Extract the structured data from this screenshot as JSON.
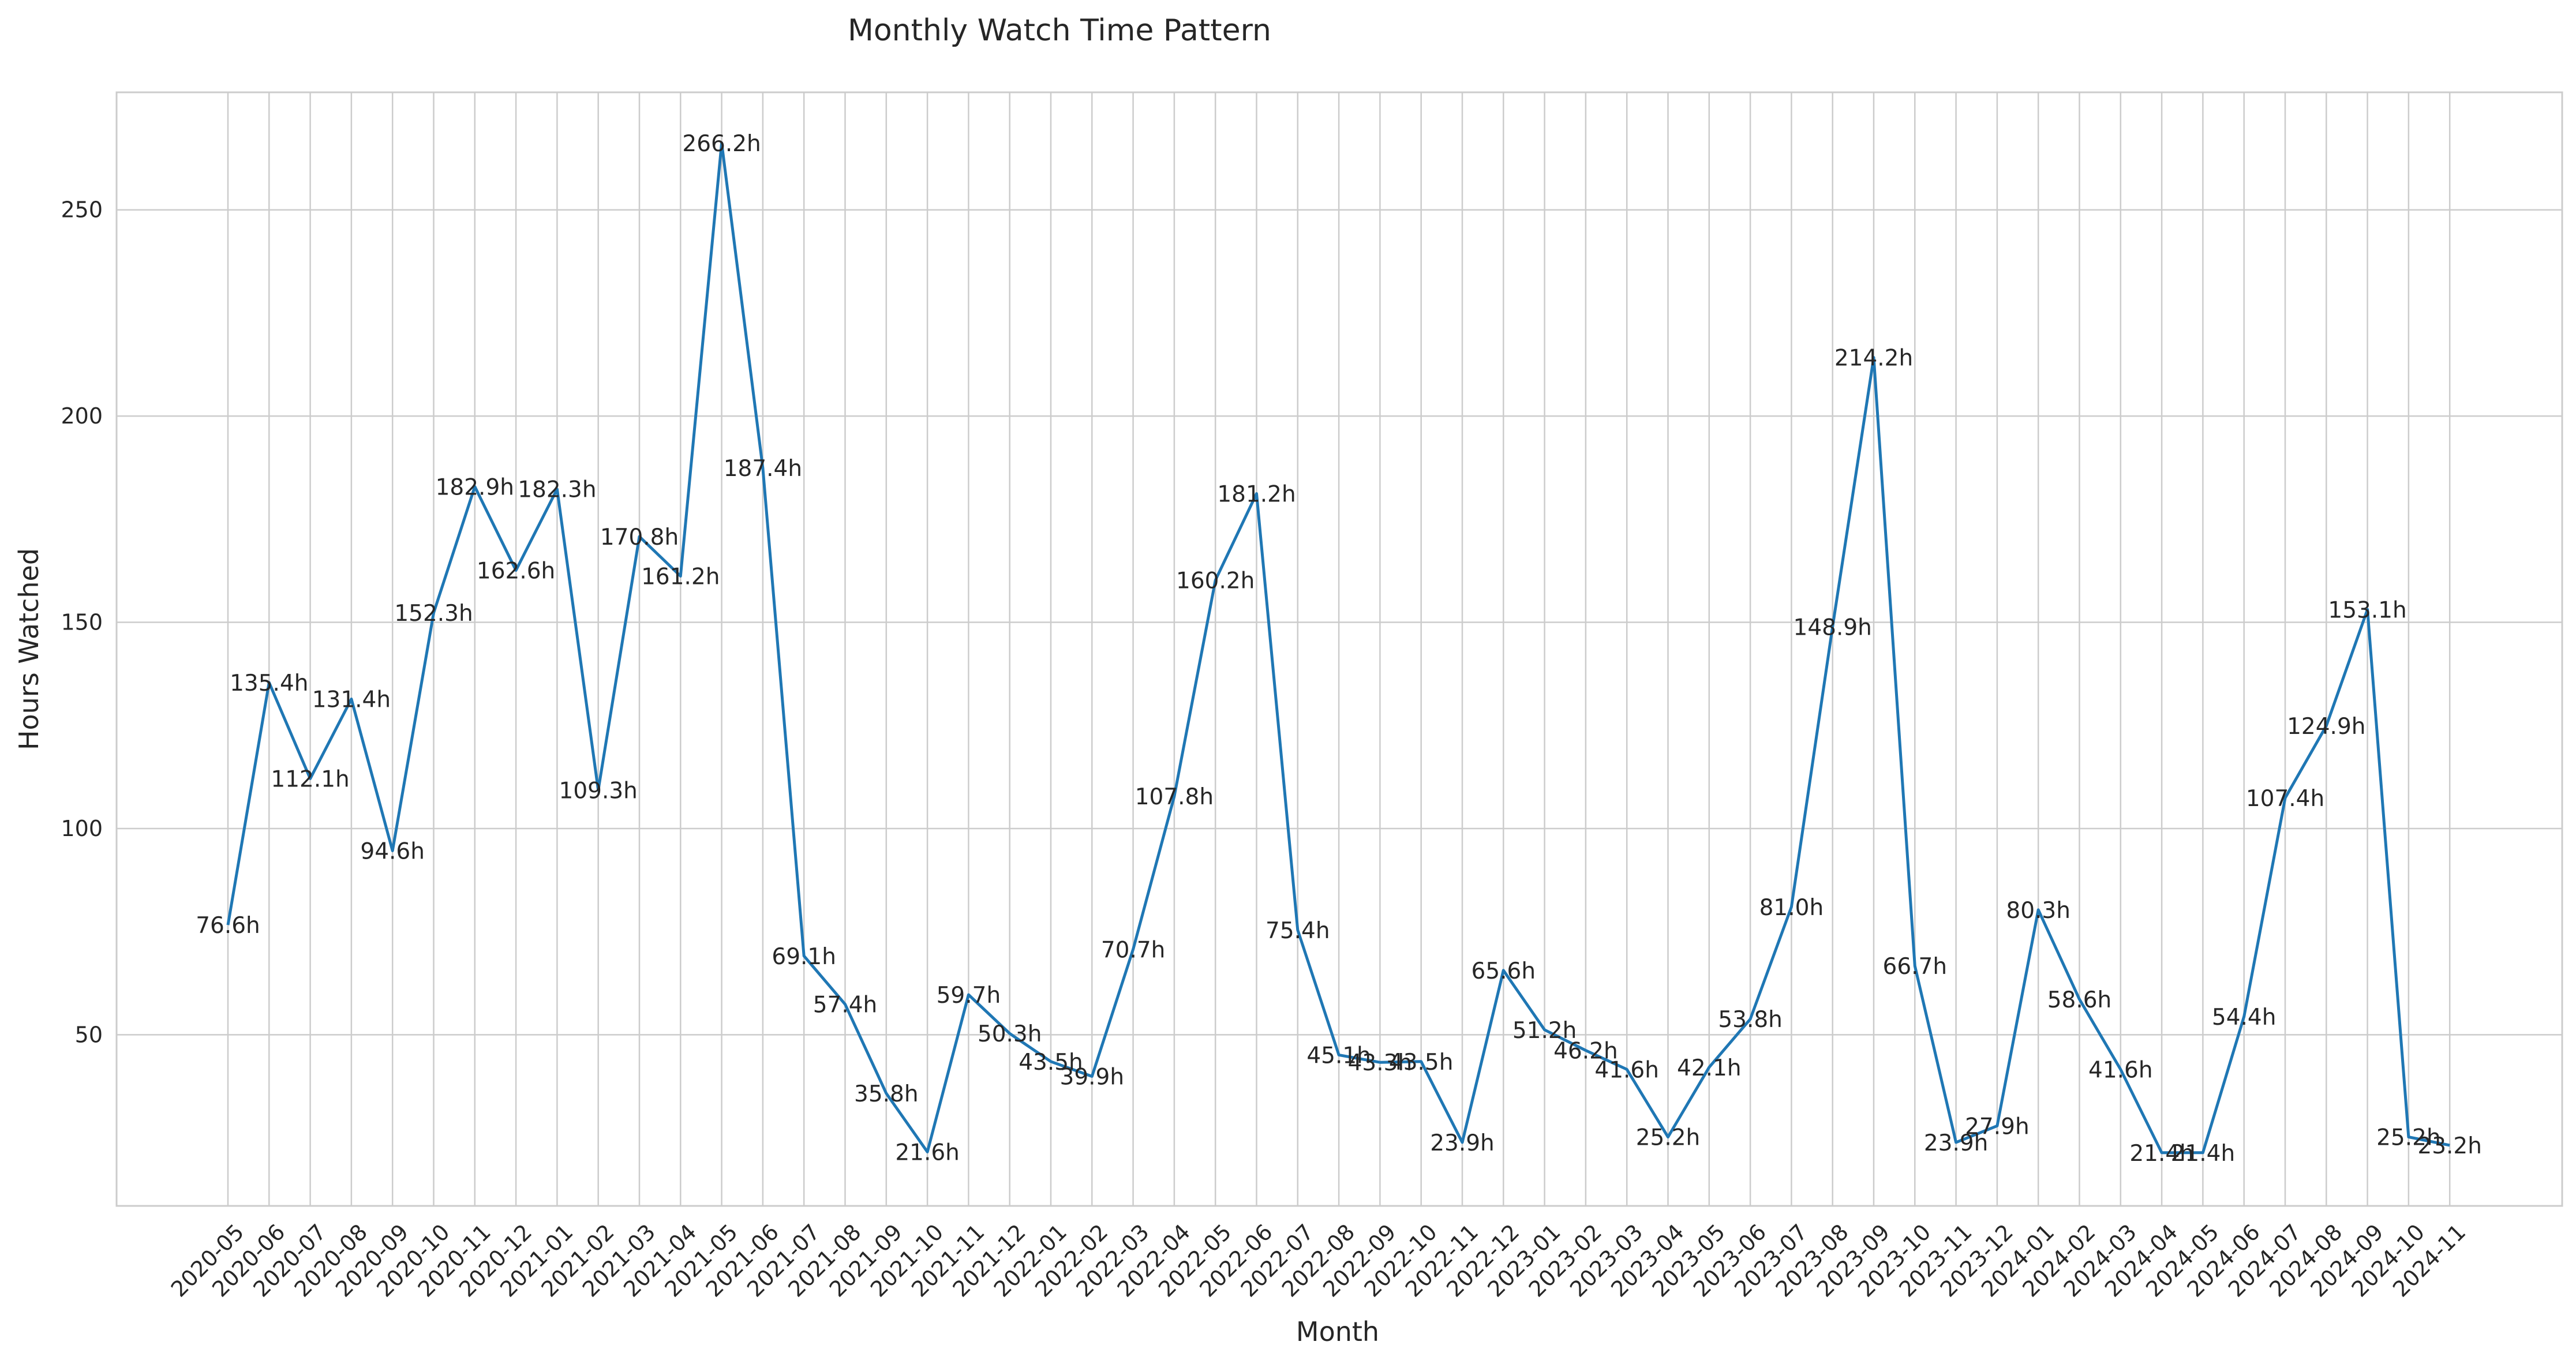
{
  "chart_data": {
    "type": "line",
    "title": "Monthly Watch Time Pattern",
    "xlabel": "Month",
    "ylabel": "Hours Watched",
    "grid": true,
    "ylim": [
      8.5,
      278.5
    ],
    "yticks": [
      50,
      100,
      150,
      200,
      250
    ],
    "line_color": "#1f77b4",
    "categories": [
      "2020-05",
      "2020-06",
      "2020-07",
      "2020-08",
      "2020-09",
      "2020-10",
      "2020-11",
      "2020-12",
      "2021-01",
      "2021-02",
      "2021-03",
      "2021-04",
      "2021-05",
      "2021-06",
      "2021-07",
      "2021-08",
      "2021-09",
      "2021-10",
      "2021-11",
      "2021-12",
      "2022-01",
      "2022-02",
      "2022-03",
      "2022-04",
      "2022-05",
      "2022-06",
      "2022-07",
      "2022-08",
      "2022-09",
      "2022-10",
      "2022-11",
      "2022-12",
      "2023-01",
      "2023-02",
      "2023-03",
      "2023-04",
      "2023-05",
      "2023-06",
      "2023-07",
      "2023-08",
      "2023-09",
      "2023-10",
      "2023-11",
      "2023-12",
      "2024-01",
      "2024-02",
      "2024-03",
      "2024-04",
      "2024-05",
      "2024-06",
      "2024-07",
      "2024-08",
      "2024-09",
      "2024-10",
      "2024-11"
    ],
    "values": [
      76.6,
      135.4,
      112.1,
      131.4,
      94.6,
      152.3,
      182.9,
      162.6,
      182.3,
      109.3,
      170.8,
      161.2,
      266.2,
      187.4,
      69.1,
      57.4,
      35.8,
      21.6,
      59.7,
      50.3,
      43.5,
      39.9,
      70.7,
      107.8,
      160.2,
      181.2,
      75.4,
      45.1,
      43.3,
      43.5,
      23.9,
      65.6,
      51.2,
      46.2,
      41.6,
      25.2,
      42.1,
      53.8,
      81.0,
      148.9,
      214.2,
      66.7,
      23.9,
      27.9,
      80.3,
      58.6,
      41.6,
      21.4,
      21.4,
      54.4,
      107.4,
      124.9,
      153.1,
      25.2,
      23.2
    ],
    "data_labels": [
      "76.6h",
      "135.4h",
      "112.1h",
      "131.4h",
      "94.6h",
      "152.3h",
      "182.9h",
      "162.6h",
      "182.3h",
      "109.3h",
      "170.8h",
      "161.2h",
      "266.2h",
      "187.4h",
      "69.1h",
      "57.4h",
      "35.8h",
      "21.6h",
      "59.7h",
      "50.3h",
      "43.5h",
      "39.9h",
      "70.7h",
      "107.8h",
      "160.2h",
      "181.2h",
      "75.4h",
      "45.1h",
      "43.3h",
      "43.5h",
      "23.9h",
      "65.6h",
      "51.2h",
      "46.2h",
      "41.6h",
      "25.2h",
      "42.1h",
      "53.8h",
      "81.0h",
      "148.9h",
      "214.2h",
      "66.7h",
      "23.9h",
      "27.9h",
      "80.3h",
      "58.6h",
      "41.6h",
      "21.4h",
      "21.4h",
      "54.4h",
      "107.4h",
      "124.9h",
      "153.1h",
      "25.2h",
      "23.2h"
    ]
  }
}
